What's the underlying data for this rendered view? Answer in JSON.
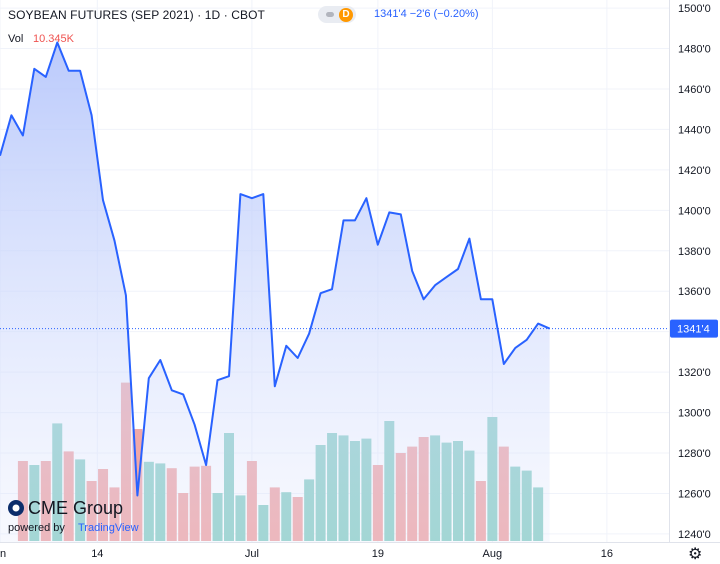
{
  "header": {
    "title": "SOYBEAN FUTURES (SEP 2021) · 1D · CBOT",
    "quote": "1341'4  −2'6 (−0.20%)",
    "chip_letter": "D",
    "vol_label": "Vol",
    "vol_value": "10.345K"
  },
  "watermark": {
    "brand": "CME Group",
    "powered_by": "powered by",
    "provider": "TradingView"
  },
  "colors": {
    "line": "#2962ff",
    "area_top": "#b3c4fb",
    "vol_up": "#8fd1c7",
    "vol_down": "#f1a8a8",
    "price_tag": "#2962ff"
  },
  "chart_data": {
    "type": "area",
    "title": "SOYBEAN FUTURES (SEP 2021)",
    "x_ticks": [
      "un",
      "14",
      "Jul",
      "19",
      "Aug",
      "16"
    ],
    "y_ticks": [
      "1500'0",
      "1480'0",
      "1460'0",
      "1440'0",
      "1420'0",
      "1400'0",
      "1380'0",
      "1360'0",
      "1340'0",
      "1320'0",
      "1300'0",
      "1280'0",
      "1260'0",
      "1240'0"
    ],
    "y_range": [
      1236,
      1504
    ],
    "last_price_label": "1341'4",
    "last_price": 1341.5,
    "series": [
      {
        "values": [
          1427,
          1447,
          1437,
          1470,
          1466,
          1483,
          1469,
          1469,
          1447,
          1405,
          1385,
          1358,
          1259,
          1317,
          1326,
          1311,
          1309,
          1294,
          1274,
          1316,
          1318,
          1408,
          1406,
          1408,
          1313,
          1333,
          1327,
          1339,
          1359,
          1361,
          1395,
          1395,
          1406,
          1383,
          1399,
          1398,
          1370,
          1356,
          1363,
          1367,
          1371,
          1386,
          1356,
          1356,
          1324,
          1332,
          1336,
          1344,
          1341.5
        ]
      },
      {
        "name": "Vol",
        "values": [
          0,
          0,
          1.0,
          0.95,
          1.0,
          1.47,
          1.12,
          1.02,
          0.75,
          0.9,
          0.67,
          1.98,
          1.4,
          0.99,
          0.97,
          0.91,
          0.6,
          0.93,
          0.94,
          0.6,
          1.35,
          0.57,
          1.0,
          0.45,
          0.67,
          0.61,
          0.55,
          0.77,
          1.2,
          1.35,
          1.32,
          1.25,
          1.28,
          0.95,
          1.5,
          1.1,
          1.18,
          1.3,
          1.32,
          1.23,
          1.25,
          1.13,
          0.75,
          1.55,
          1.18,
          0.93,
          0.88,
          0.67,
          0
        ]
      }
    ]
  }
}
